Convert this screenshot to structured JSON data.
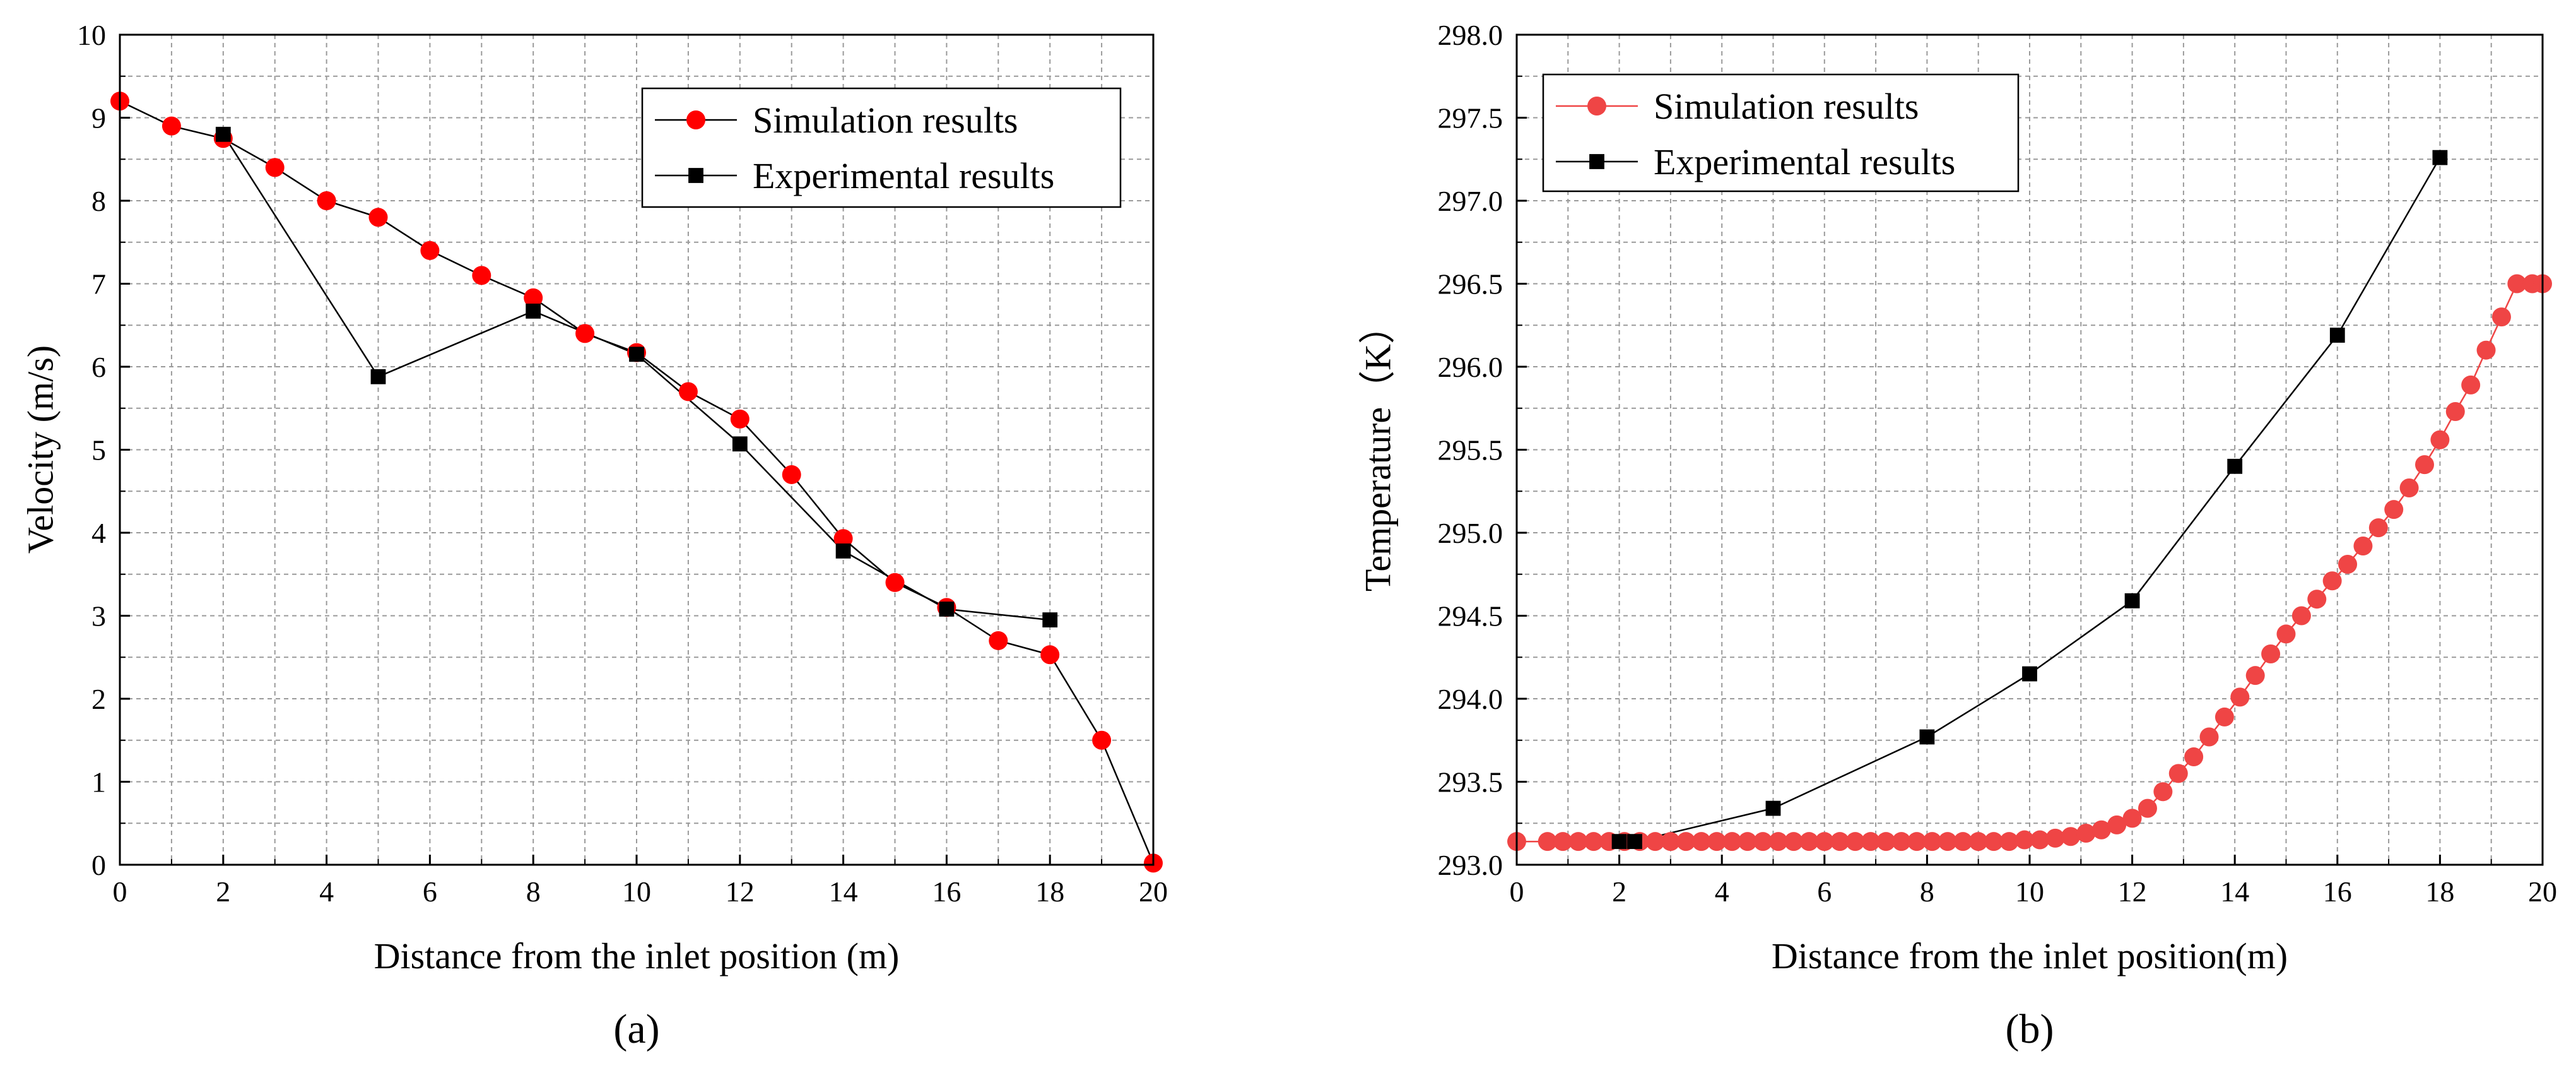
{
  "charts": [
    {
      "panel_label": "(a)",
      "chart_data": {
        "type": "line",
        "title": "",
        "xlabel": "Distance from the inlet position (m)",
        "ylabel": "Velocity (m/s)",
        "xlim": [
          0,
          20
        ],
        "ylim": [
          0,
          10
        ],
        "xticks": [
          "0",
          "2",
          "4",
          "6",
          "8",
          "10",
          "12",
          "14",
          "16",
          "18",
          "20"
        ],
        "yticks": [
          "0",
          "1",
          "2",
          "3",
          "4",
          "5",
          "6",
          "7",
          "8",
          "9",
          "10"
        ],
        "grid": true,
        "legend_position": "top-right",
        "series": [
          {
            "name": "Simulation results",
            "marker": "circle",
            "color": "#ff0000",
            "x": [
              0,
              1,
              2,
              3,
              4,
              5,
              6,
              7,
              8,
              9,
              10,
              11,
              12,
              13,
              14,
              15,
              16,
              17,
              18,
              19,
              20
            ],
            "y": [
              9.2,
              8.9,
              8.75,
              8.4,
              8.0,
              7.8,
              7.4,
              7.1,
              6.83,
              6.4,
              6.17,
              5.7,
              5.37,
              4.7,
              3.93,
              3.4,
              3.1,
              2.7,
              2.53,
              1.5,
              0.02
            ]
          },
          {
            "name": "Experimental results",
            "marker": "square",
            "color": "#000000",
            "x": [
              2,
              5,
              8,
              10,
              12,
              14,
              16,
              18
            ],
            "y": [
              8.8,
              5.88,
              6.67,
              6.15,
              5.07,
              3.78,
              3.08,
              2.95
            ]
          }
        ]
      }
    },
    {
      "panel_label": "(b)",
      "chart_data": {
        "type": "line",
        "title": "",
        "xlabel": "Distance from the inlet position(m)",
        "ylabel": "Temperature（K）",
        "xlim": [
          0,
          20
        ],
        "ylim": [
          293.0,
          298.0
        ],
        "xticks": [
          "0",
          "2",
          "4",
          "6",
          "8",
          "10",
          "12",
          "14",
          "16",
          "18",
          "20"
        ],
        "yticks": [
          "293.0",
          "293.5",
          "294.0",
          "294.5",
          "295.0",
          "295.5",
          "296.0",
          "296.5",
          "297.0",
          "297.5",
          "298.0"
        ],
        "grid": true,
        "legend_position": "top-left",
        "series": [
          {
            "name": "Simulation results",
            "marker": "circle",
            "color": "#ef4545",
            "x": [
              0,
              0.6,
              0.9,
              1.2,
              1.5,
              1.8,
              2.1,
              2.4,
              2.7,
              3.0,
              3.3,
              3.6,
              3.9,
              4.2,
              4.5,
              4.8,
              5.1,
              5.4,
              5.7,
              6.0,
              6.3,
              6.6,
              6.9,
              7.2,
              7.5,
              7.8,
              8.1,
              8.4,
              8.7,
              9.0,
              9.3,
              9.6,
              9.9,
              10.2,
              10.5,
              10.8,
              11.1,
              11.4,
              11.7,
              12.0,
              12.3,
              12.6,
              12.9,
              13.2,
              13.5,
              13.8,
              14.1,
              14.4,
              14.7,
              15.0,
              15.3,
              15.6,
              15.9,
              16.2,
              16.5,
              16.8,
              17.1,
              17.4,
              17.7,
              18.0,
              18.3,
              18.6,
              18.9,
              19.2,
              19.5,
              19.8,
              20.0
            ],
            "y": [
              293.14,
              293.14,
              293.14,
              293.14,
              293.14,
              293.14,
              293.14,
              293.14,
              293.14,
              293.14,
              293.14,
              293.14,
              293.14,
              293.14,
              293.14,
              293.14,
              293.14,
              293.14,
              293.14,
              293.14,
              293.14,
              293.14,
              293.14,
              293.14,
              293.14,
              293.14,
              293.14,
              293.14,
              293.14,
              293.14,
              293.14,
              293.14,
              293.15,
              293.15,
              293.16,
              293.17,
              293.19,
              293.21,
              293.24,
              293.28,
              293.34,
              293.44,
              293.55,
              293.65,
              293.77,
              293.89,
              294.01,
              294.14,
              294.27,
              294.39,
              294.5,
              294.6,
              294.71,
              294.81,
              294.92,
              295.03,
              295.14,
              295.27,
              295.41,
              295.56,
              295.73,
              295.89,
              296.1,
              296.3,
              296.5,
              296.5,
              296.5
            ]
          },
          {
            "name": "Experimental results",
            "marker": "square",
            "color": "#000000",
            "x": [
              2.0,
              2.3,
              5,
              8,
              10,
              12,
              14,
              16,
              18
            ],
            "y": [
              293.14,
              293.14,
              293.34,
              293.77,
              294.15,
              294.59,
              295.4,
              296.19,
              297.26
            ]
          }
        ]
      }
    }
  ]
}
